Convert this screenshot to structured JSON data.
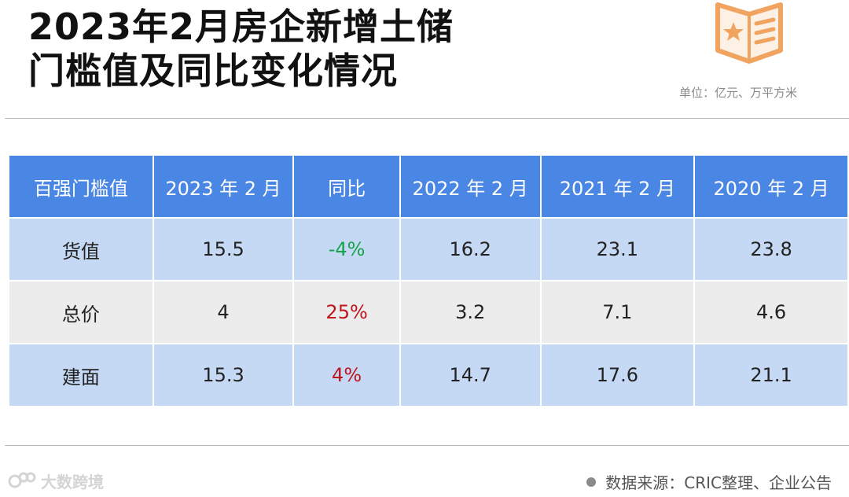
{
  "title": {
    "line1": "2023年2月房企新增土储",
    "line2": "门槛值及同比变化情况"
  },
  "unit_label": "单位：亿元、万平方米",
  "table": {
    "headers": [
      "百强门槛值",
      "2023 年 2 月",
      "同比",
      "2022 年 2 月",
      "2021 年 2 月",
      "2020 年 2 月"
    ],
    "rows": [
      {
        "label": "货值",
        "cells": [
          "15.5",
          "-4%",
          "16.2",
          "23.1",
          "23.8"
        ]
      },
      {
        "label": "总价",
        "cells": [
          "4",
          "25%",
          "3.2",
          "7.1",
          "4.6"
        ]
      },
      {
        "label": "建面",
        "cells": [
          "15.3",
          "4%",
          "14.7",
          "17.6",
          "21.1"
        ]
      }
    ]
  },
  "footer": {
    "brand": "大数跨境",
    "source": "数据来源：CRIC整理、企业公告"
  },
  "colors": {
    "header_bg": "#4a86e3",
    "row_blue": "#c5d9f4",
    "row_gray": "#ececec",
    "negative": "#15a34a",
    "positive": "#c0141c",
    "icon_orange": "#f0a460"
  },
  "icons": {
    "top_right": "star-book-icon",
    "brand": "brand-logo-icon"
  }
}
